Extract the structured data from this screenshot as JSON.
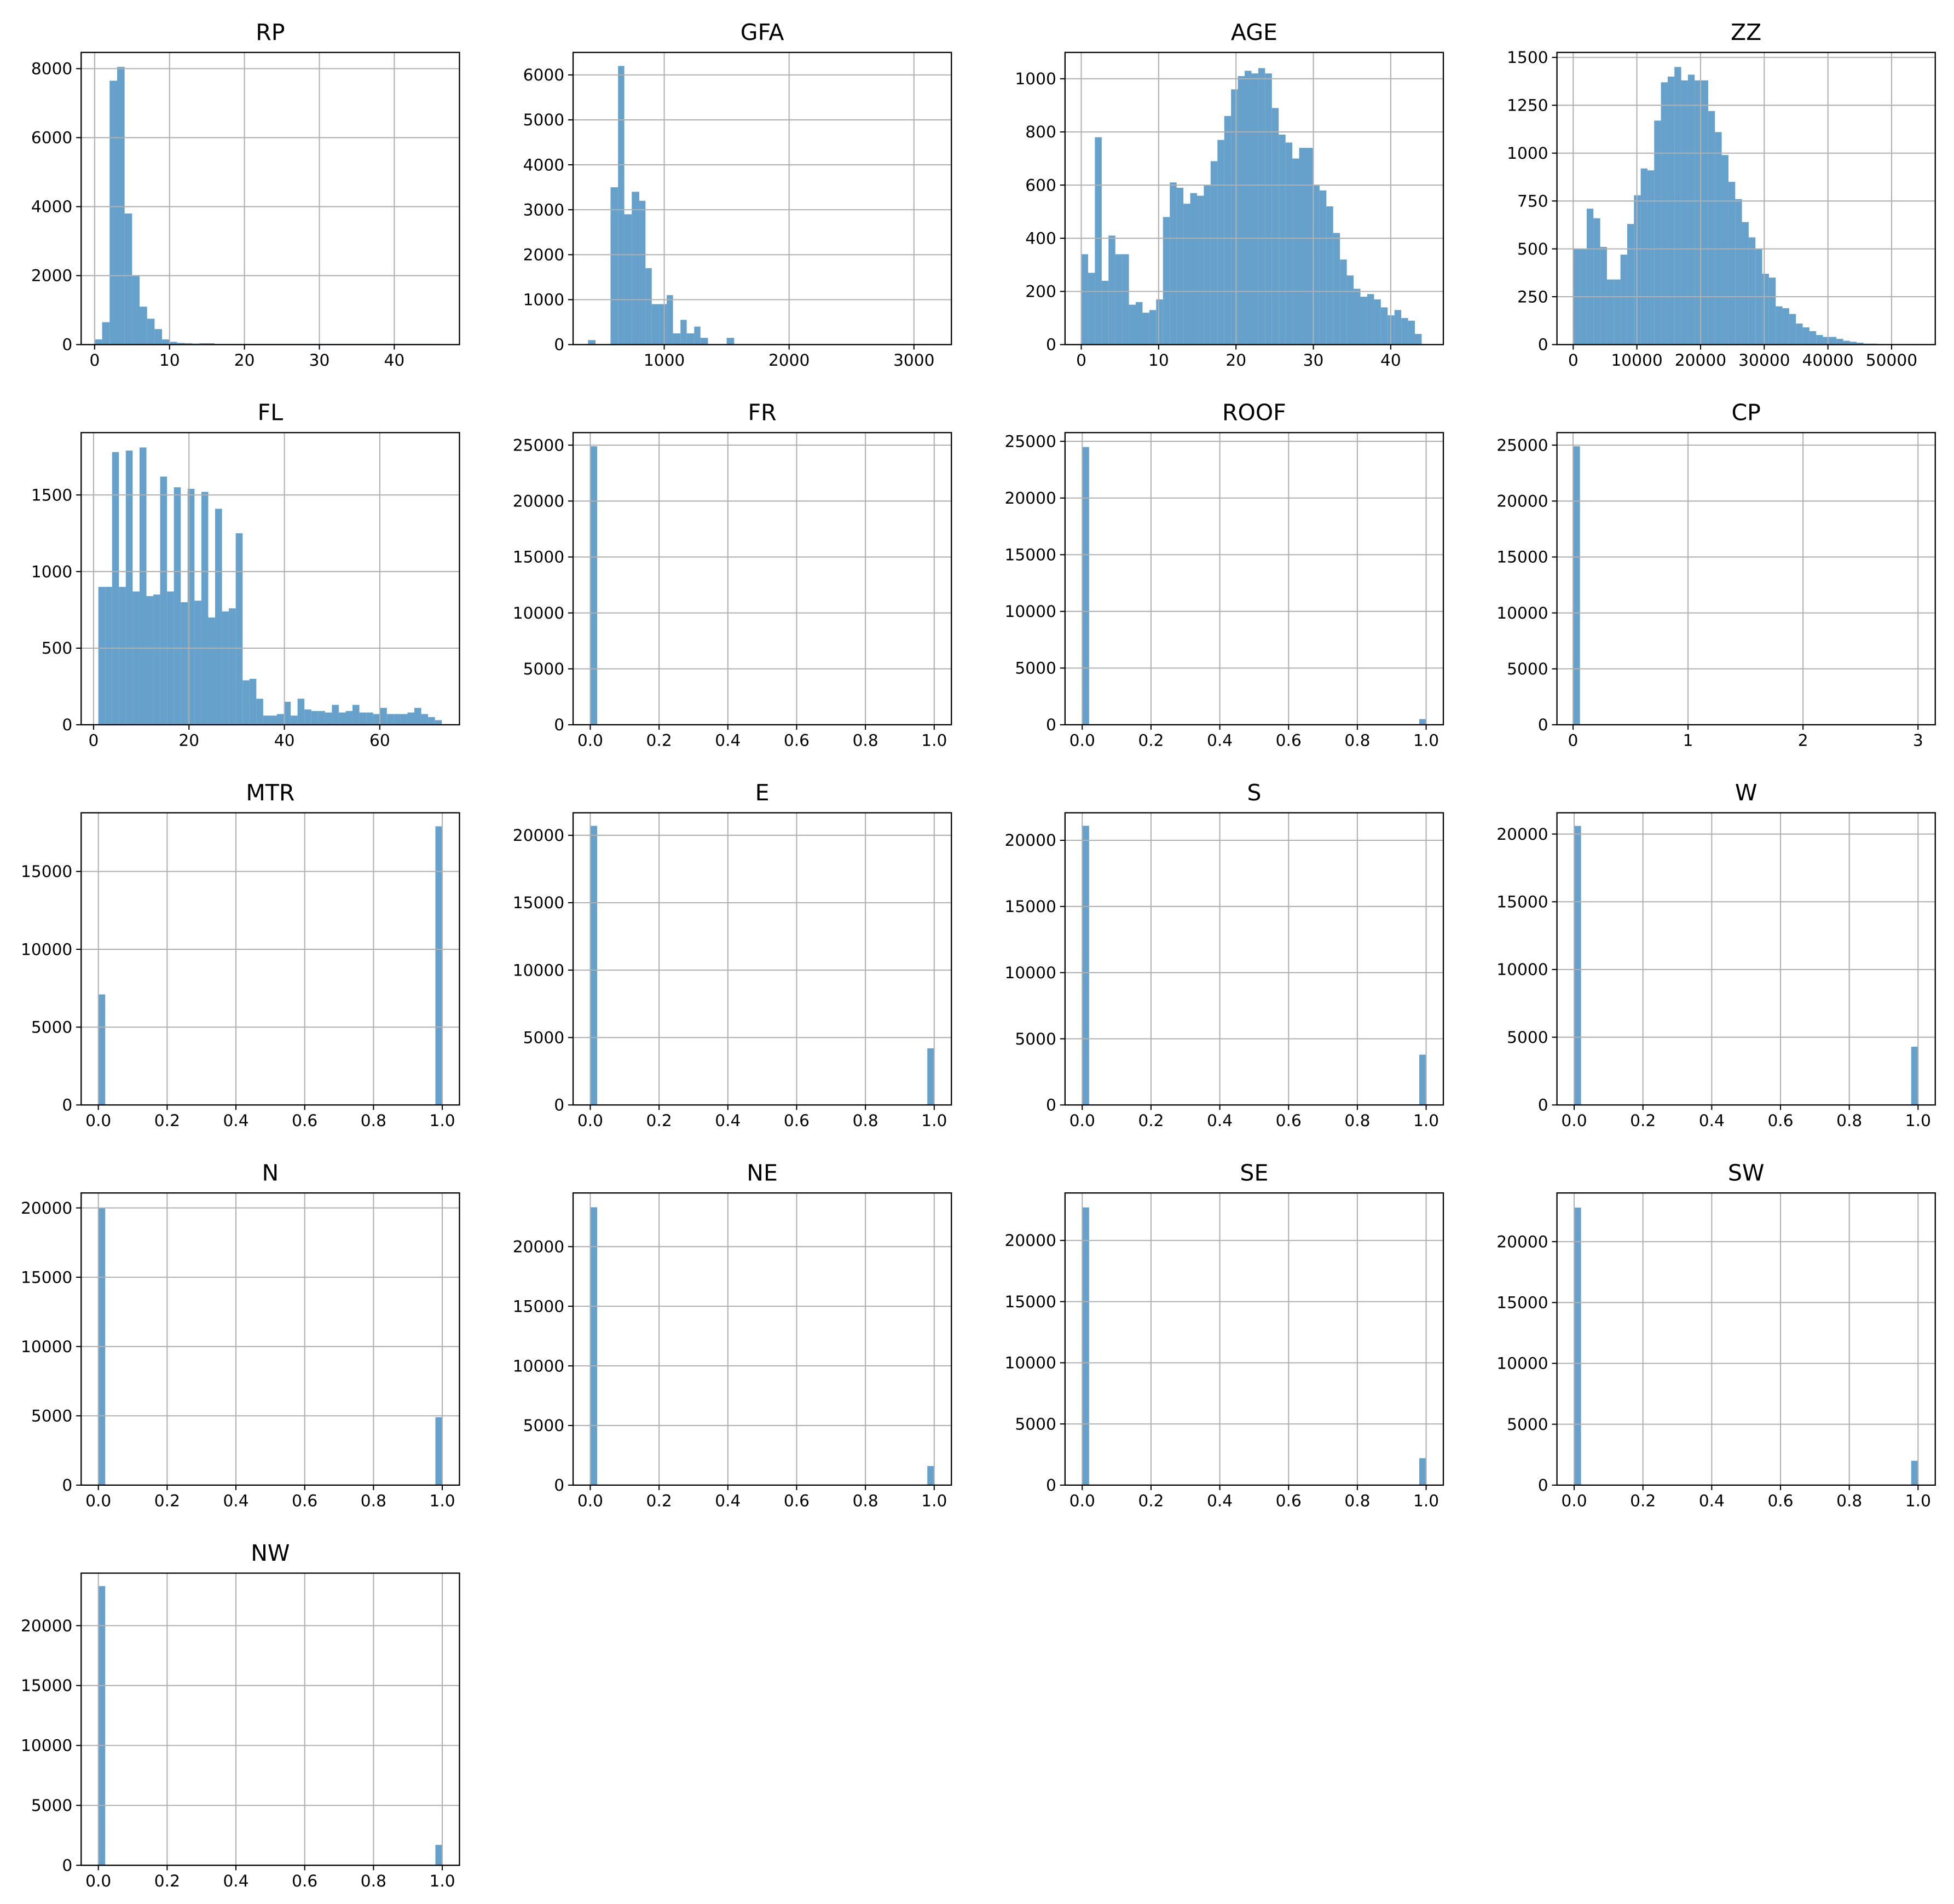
{
  "chart_data": [
    {
      "type": "histogram",
      "title": "RP",
      "color": "#629fca",
      "grid": true,
      "bins": [
        0,
        1,
        2,
        3,
        4,
        5,
        6,
        7,
        8,
        9,
        10,
        11,
        12,
        13,
        14,
        16,
        46
      ],
      "counts": [
        150,
        650,
        7650,
        8050,
        3800,
        2000,
        1100,
        750,
        450,
        150,
        80,
        50,
        40,
        30,
        40,
        20
      ],
      "xlim": [
        -1.8,
        48.7
      ],
      "ylim": [
        0,
        8470
      ],
      "xticks": [
        0,
        10,
        20,
        30,
        40
      ],
      "yticks": [
        0,
        2000,
        4000,
        6000,
        8000
      ]
    },
    {
      "type": "histogram",
      "title": "GFA",
      "color": "#629fca",
      "grid": true,
      "bins": [
        390,
        450,
        570,
        630,
        680,
        740,
        800,
        850,
        900,
        960,
        1020,
        1070,
        1130,
        1180,
        1240,
        1290,
        1350,
        1500,
        1560,
        3150
      ],
      "counts": [
        100,
        0,
        3500,
        6200,
        2900,
        3400,
        3200,
        1700,
        900,
        900,
        1100,
        250,
        550,
        250,
        400,
        150,
        0,
        150,
        0
      ],
      "xlim": [
        270,
        3300
      ],
      "ylim": [
        0,
        6500
      ],
      "xticks": [
        1000,
        2000,
        3000
      ],
      "yticks": [
        0,
        1000,
        2000,
        3000,
        4000,
        5000,
        6000
      ]
    },
    {
      "type": "histogram",
      "title": "AGE",
      "color": "#629fca",
      "grid": true,
      "bins": [
        0,
        0.88,
        1.76,
        2.64,
        3.52,
        4.4,
        5.28,
        6.16,
        7.04,
        7.92,
        8.8,
        9.68,
        10.56,
        11.44,
        12.32,
        13.2,
        14.08,
        14.96,
        15.84,
        16.72,
        17.6,
        18.48,
        19.36,
        20.24,
        21.12,
        22,
        22.88,
        23.76,
        24.64,
        25.52,
        26.4,
        27.28,
        28.16,
        29.04,
        29.92,
        30.8,
        31.68,
        32.56,
        33.44,
        34.32,
        35.2,
        36.08,
        36.96,
        37.84,
        38.72,
        39.6,
        40.48,
        41.36,
        42.24,
        43.12,
        44
      ],
      "counts": [
        340,
        270,
        780,
        240,
        410,
        340,
        340,
        150,
        160,
        120,
        130,
        170,
        480,
        610,
        590,
        530,
        570,
        560,
        600,
        690,
        770,
        860,
        960,
        1010,
        1030,
        1020,
        1040,
        1020,
        890,
        790,
        760,
        700,
        740,
        740,
        600,
        580,
        520,
        420,
        320,
        260,
        210,
        180,
        190,
        170,
        140,
        110,
        130,
        100,
        90,
        40
      ],
      "xlim": [
        -2.1,
        46.8
      ],
      "ylim": [
        0,
        1099
      ],
      "xticks": [
        0,
        10,
        20,
        30,
        40
      ],
      "yticks": [
        0,
        200,
        400,
        600,
        800,
        1000
      ]
    },
    {
      "type": "histogram",
      "title": "ZZ",
      "color": "#629fca",
      "grid": true,
      "bins": [
        0,
        1060,
        2120,
        3180,
        4240,
        5300,
        6360,
        7420,
        8480,
        9540,
        10600,
        11660,
        12720,
        13780,
        14840,
        15900,
        16960,
        18020,
        19080,
        20140,
        21200,
        22260,
        23320,
        24380,
        25440,
        26500,
        27560,
        28620,
        29680,
        30740,
        31800,
        32860,
        33920,
        34980,
        36040,
        37100,
        38160,
        39220,
        40280,
        41340,
        42400,
        43460,
        44520,
        45580,
        46640,
        47700,
        48760,
        49820,
        50880,
        51940,
        53000
      ],
      "counts": [
        500,
        500,
        710,
        660,
        510,
        340,
        340,
        470,
        630,
        780,
        920,
        910,
        1170,
        1370,
        1400,
        1450,
        1380,
        1410,
        1380,
        1380,
        1220,
        1110,
        990,
        850,
        760,
        640,
        560,
        500,
        370,
        350,
        200,
        190,
        160,
        110,
        90,
        70,
        50,
        40,
        40,
        30,
        20,
        15,
        10,
        5,
        5,
        3,
        2,
        1,
        1,
        1
      ],
      "xlim": [
        -2550,
        56860
      ],
      "ylim": [
        0,
        1526
      ],
      "xticks": [
        0,
        10000,
        20000,
        30000,
        40000,
        50000
      ],
      "yticks": [
        0,
        250,
        500,
        750,
        1000,
        1250,
        1500
      ]
    },
    {
      "type": "histogram",
      "title": "FL",
      "color": "#629fca",
      "grid": true,
      "bins": [
        1,
        2.44,
        3.88,
        5.32,
        6.76,
        8.2,
        9.64,
        11.08,
        12.52,
        13.96,
        15.4,
        16.84,
        18.28,
        19.72,
        21.16,
        22.6,
        24.04,
        25.48,
        26.92,
        28.36,
        29.8,
        31.24,
        32.68,
        34.12,
        35.56,
        37,
        38.44,
        39.88,
        41.32,
        42.76,
        44.2,
        45.64,
        47.08,
        48.52,
        49.96,
        51.4,
        52.84,
        54.28,
        55.72,
        57.16,
        58.6,
        60.04,
        61.48,
        62.92,
        64.36,
        65.8,
        67.24,
        68.68,
        70.12,
        71.56,
        73
      ],
      "counts": [
        900,
        900,
        1780,
        900,
        1790,
        870,
        1810,
        840,
        850,
        1620,
        870,
        1550,
        800,
        1540,
        810,
        1520,
        700,
        1410,
        740,
        760,
        1250,
        290,
        300,
        170,
        60,
        60,
        70,
        150,
        60,
        170,
        100,
        90,
        90,
        80,
        130,
        80,
        90,
        130,
        80,
        80,
        70,
        110,
        70,
        70,
        70,
        80,
        110,
        70,
        50,
        30
      ],
      "xlim": [
        -2.6,
        76.7
      ],
      "ylim": [
        0,
        1907
      ],
      "xticks": [
        0,
        20,
        40,
        60
      ],
      "yticks": [
        0,
        500,
        1000,
        1500
      ]
    },
    {
      "type": "histogram",
      "title": "FR",
      "color": "#629fca",
      "grid": true,
      "bins": [
        0,
        0.02
      ],
      "counts": [
        24900
      ],
      "xlim": [
        -0.05,
        1.05
      ],
      "ylim": [
        0,
        26120
      ],
      "xticks": [
        {
          "value": 0,
          "label": "0.0"
        },
        {
          "value": 0.2,
          "label": "0.2"
        },
        {
          "value": 0.4,
          "label": "0.4"
        },
        {
          "value": 0.6,
          "label": "0.6"
        },
        {
          "value": 0.8,
          "label": "0.8"
        },
        {
          "value": 1,
          "label": "1.0"
        }
      ],
      "yticks": [
        0,
        5000,
        10000,
        15000,
        20000,
        25000
      ]
    },
    {
      "type": "histogram",
      "title": "ROOF",
      "color": "#629fca",
      "grid": true,
      "bins": [
        0,
        0.02,
        0.98,
        1
      ],
      "counts": [
        24500,
        0,
        500
      ],
      "xlim": [
        -0.05,
        1.05
      ],
      "ylim": [
        0,
        25770
      ],
      "xticks": [
        {
          "value": 0,
          "label": "0.0"
        },
        {
          "value": 0.2,
          "label": "0.2"
        },
        {
          "value": 0.4,
          "label": "0.4"
        },
        {
          "value": 0.6,
          "label": "0.6"
        },
        {
          "value": 0.8,
          "label": "0.8"
        },
        {
          "value": 1,
          "label": "1.0"
        }
      ],
      "yticks": [
        0,
        5000,
        10000,
        15000,
        20000,
        25000
      ]
    },
    {
      "type": "histogram",
      "title": "CP",
      "color": "#629fca",
      "grid": true,
      "bins": [
        0,
        0.06
      ],
      "counts": [
        24900
      ],
      "xlim": [
        -0.14,
        3.15
      ],
      "ylim": [
        0,
        26120
      ],
      "xticks": [
        0,
        1,
        2,
        3
      ],
      "yticks": [
        0,
        5000,
        10000,
        15000,
        20000,
        25000
      ]
    },
    {
      "type": "histogram",
      "title": "MTR",
      "color": "#629fca",
      "grid": true,
      "bins": [
        0,
        0.02,
        0.98,
        1
      ],
      "counts": [
        7100,
        0,
        17900
      ],
      "xlim": [
        -0.05,
        1.05
      ],
      "ylim": [
        0,
        18770
      ],
      "xticks": [
        {
          "value": 0,
          "label": "0.0"
        },
        {
          "value": 0.2,
          "label": "0.2"
        },
        {
          "value": 0.4,
          "label": "0.4"
        },
        {
          "value": 0.6,
          "label": "0.6"
        },
        {
          "value": 0.8,
          "label": "0.8"
        },
        {
          "value": 1,
          "label": "1.0"
        }
      ],
      "yticks": [
        0,
        5000,
        10000,
        15000
      ]
    },
    {
      "type": "histogram",
      "title": "E",
      "color": "#629fca",
      "grid": true,
      "bins": [
        0,
        0.02,
        0.98,
        1
      ],
      "counts": [
        20700,
        0,
        4200
      ],
      "xlim": [
        -0.05,
        1.05
      ],
      "ylim": [
        0,
        21670
      ],
      "xticks": [
        {
          "value": 0,
          "label": "0.0"
        },
        {
          "value": 0.2,
          "label": "0.2"
        },
        {
          "value": 0.4,
          "label": "0.4"
        },
        {
          "value": 0.6,
          "label": "0.6"
        },
        {
          "value": 0.8,
          "label": "0.8"
        },
        {
          "value": 1,
          "label": "1.0"
        }
      ],
      "yticks": [
        0,
        5000,
        10000,
        15000,
        20000
      ]
    },
    {
      "type": "histogram",
      "title": "S",
      "color": "#629fca",
      "grid": true,
      "bins": [
        0,
        0.02,
        0.98,
        1
      ],
      "counts": [
        21100,
        0,
        3800
      ],
      "xlim": [
        -0.05,
        1.05
      ],
      "ylim": [
        0,
        22080
      ],
      "xticks": [
        {
          "value": 0,
          "label": "0.0"
        },
        {
          "value": 0.2,
          "label": "0.2"
        },
        {
          "value": 0.4,
          "label": "0.4"
        },
        {
          "value": 0.6,
          "label": "0.6"
        },
        {
          "value": 0.8,
          "label": "0.8"
        },
        {
          "value": 1,
          "label": "1.0"
        }
      ],
      "yticks": [
        0,
        5000,
        10000,
        15000,
        20000
      ]
    },
    {
      "type": "histogram",
      "title": "W",
      "color": "#629fca",
      "grid": true,
      "bins": [
        0,
        0.02,
        0.98,
        1
      ],
      "counts": [
        20600,
        0,
        4300
      ],
      "xlim": [
        -0.05,
        1.05
      ],
      "ylim": [
        0,
        21570
      ],
      "xticks": [
        {
          "value": 0,
          "label": "0.0"
        },
        {
          "value": 0.2,
          "label": "0.2"
        },
        {
          "value": 0.4,
          "label": "0.4"
        },
        {
          "value": 0.6,
          "label": "0.6"
        },
        {
          "value": 0.8,
          "label": "0.8"
        },
        {
          "value": 1,
          "label": "1.0"
        }
      ],
      "yticks": [
        0,
        5000,
        10000,
        15000,
        20000
      ]
    },
    {
      "type": "histogram",
      "title": "N",
      "color": "#629fca",
      "grid": true,
      "bins": [
        0,
        0.02,
        0.98,
        1
      ],
      "counts": [
        20000,
        0,
        4900
      ],
      "xlim": [
        -0.05,
        1.05
      ],
      "ylim": [
        0,
        21080
      ],
      "xticks": [
        {
          "value": 0,
          "label": "0.0"
        },
        {
          "value": 0.2,
          "label": "0.2"
        },
        {
          "value": 0.4,
          "label": "0.4"
        },
        {
          "value": 0.6,
          "label": "0.6"
        },
        {
          "value": 0.8,
          "label": "0.8"
        },
        {
          "value": 1,
          "label": "1.0"
        }
      ],
      "yticks": [
        0,
        5000,
        10000,
        15000,
        20000
      ]
    },
    {
      "type": "histogram",
      "title": "NE",
      "color": "#629fca",
      "grid": true,
      "bins": [
        0,
        0.02,
        0.98,
        1
      ],
      "counts": [
        23300,
        0,
        1600
      ],
      "xlim": [
        -0.05,
        1.05
      ],
      "ylim": [
        0,
        24500
      ],
      "xticks": [
        {
          "value": 0,
          "label": "0.0"
        },
        {
          "value": 0.2,
          "label": "0.2"
        },
        {
          "value": 0.4,
          "label": "0.4"
        },
        {
          "value": 0.6,
          "label": "0.6"
        },
        {
          "value": 0.8,
          "label": "0.8"
        },
        {
          "value": 1,
          "label": "1.0"
        }
      ],
      "yticks": [
        0,
        5000,
        10000,
        15000,
        20000
      ]
    },
    {
      "type": "histogram",
      "title": "SE",
      "color": "#629fca",
      "grid": true,
      "bins": [
        0,
        0.02,
        0.98,
        1
      ],
      "counts": [
        22700,
        0,
        2200
      ],
      "xlim": [
        -0.05,
        1.05
      ],
      "ylim": [
        0,
        23880
      ],
      "xticks": [
        {
          "value": 0,
          "label": "0.0"
        },
        {
          "value": 0.2,
          "label": "0.2"
        },
        {
          "value": 0.4,
          "label": "0.4"
        },
        {
          "value": 0.6,
          "label": "0.6"
        },
        {
          "value": 0.8,
          "label": "0.8"
        },
        {
          "value": 1,
          "label": "1.0"
        }
      ],
      "yticks": [
        0,
        5000,
        10000,
        15000,
        20000
      ]
    },
    {
      "type": "histogram",
      "title": "SW",
      "color": "#629fca",
      "grid": true,
      "bins": [
        0,
        0.02,
        0.98,
        1
      ],
      "counts": [
        22800,
        0,
        2000
      ],
      "xlim": [
        -0.05,
        1.05
      ],
      "ylim": [
        0,
        24000
      ],
      "xticks": [
        {
          "value": 0,
          "label": "0.0"
        },
        {
          "value": 0.2,
          "label": "0.2"
        },
        {
          "value": 0.4,
          "label": "0.4"
        },
        {
          "value": 0.6,
          "label": "0.6"
        },
        {
          "value": 0.8,
          "label": "0.8"
        },
        {
          "value": 1,
          "label": "1.0"
        }
      ],
      "yticks": [
        0,
        5000,
        10000,
        15000,
        20000
      ]
    },
    {
      "type": "histogram",
      "title": "NW",
      "color": "#629fca",
      "grid": true,
      "bins": [
        0,
        0.02,
        0.98,
        1
      ],
      "counts": [
        23300,
        0,
        1700
      ],
      "xlim": [
        -0.05,
        1.05
      ],
      "ylim": [
        0,
        24380
      ],
      "xticks": [
        {
          "value": 0,
          "label": "0.0"
        },
        {
          "value": 0.2,
          "label": "0.2"
        },
        {
          "value": 0.4,
          "label": "0.4"
        },
        {
          "value": 0.6,
          "label": "0.6"
        },
        {
          "value": 0.8,
          "label": "0.8"
        },
        {
          "value": 1,
          "label": "1.0"
        }
      ],
      "yticks": [
        0,
        5000,
        10000,
        15000,
        20000
      ]
    }
  ]
}
